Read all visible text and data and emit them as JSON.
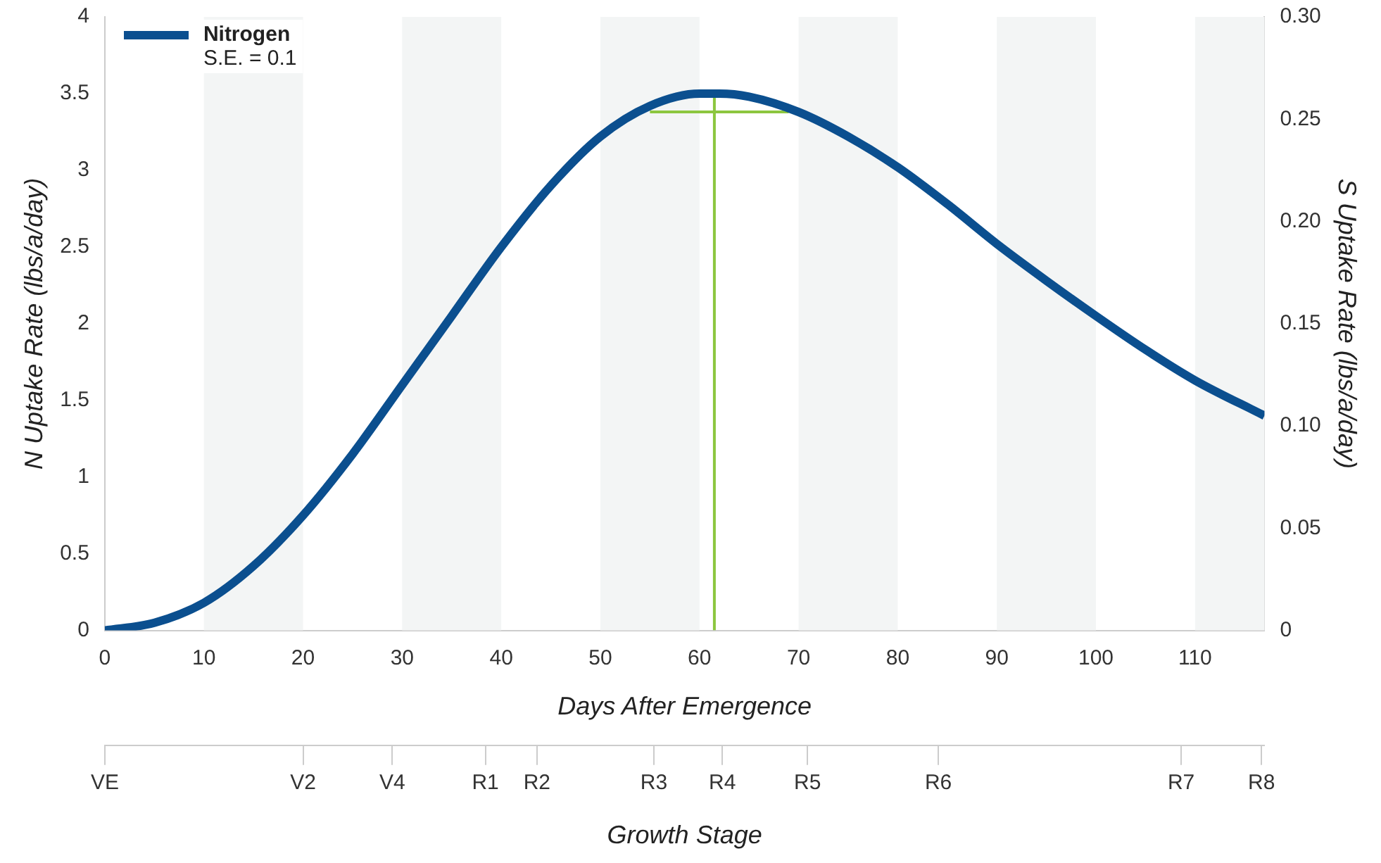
{
  "chart_data": {
    "type": "line",
    "xlabel": "Days After Emergence",
    "ylabel": "N Uptake Rate (lbs/a/day)",
    "y2label": "S Uptake Rate (lbs/a/day)",
    "xlim": [
      0,
      117
    ],
    "xticks": [
      0,
      10,
      20,
      30,
      40,
      50,
      60,
      70,
      80,
      90,
      100,
      110
    ],
    "ylim": [
      0,
      4
    ],
    "yticks": [
      0,
      0.5,
      1,
      1.5,
      2,
      2.5,
      3,
      3.5,
      4
    ],
    "y2lim": [
      0,
      0.3
    ],
    "y2ticks": [
      0,
      0.05,
      {
        "value": 0.1,
        "label": "0.10"
      },
      0.15,
      {
        "value": 0.2,
        "label": "0.20"
      },
      0.25,
      {
        "value": 0.3,
        "label": "0.30"
      }
    ],
    "x2label": "Growth Stage",
    "ref_lines": [
      {
        "axis": "x",
        "value": 0,
        "label": "VE",
        "color": "#cccccc"
      },
      {
        "axis": "x",
        "value": 20,
        "label": "V2",
        "color": "#cccccc"
      },
      {
        "axis": "x",
        "value": 29,
        "label": "V4",
        "color": "#cccccc"
      },
      {
        "axis": "x",
        "value": 38.4,
        "label": "R1",
        "color": "#cccccc"
      },
      {
        "axis": "x",
        "value": 43.6,
        "label": "R2",
        "color": "#cccccc"
      },
      {
        "axis": "x",
        "value": 55.4,
        "label": "R3",
        "color": "#cccccc"
      },
      {
        "axis": "x",
        "value": 62.3,
        "label": "R4",
        "color": "#cccccc"
      },
      {
        "axis": "x",
        "value": 70.9,
        "label": "R5",
        "color": "#cccccc"
      },
      {
        "axis": "x",
        "value": 84.1,
        "label": "R6",
        "color": "#cccccc"
      },
      {
        "axis": "x",
        "value": 108.6,
        "label": "R7",
        "color": "#cccccc"
      },
      {
        "axis": "x",
        "value": 116.7,
        "label": "R8",
        "color": "#cccccc"
      }
    ],
    "bands": [
      {
        "axis": "x",
        "from": 10,
        "to": 20,
        "color": "#f3f5f5"
      },
      {
        "axis": "x",
        "from": 30,
        "to": 40,
        "color": "#f3f5f5"
      },
      {
        "axis": "x",
        "from": 50,
        "to": 60,
        "color": "#f3f5f5"
      },
      {
        "axis": "x",
        "from": 70,
        "to": 80,
        "color": "#f3f5f5"
      },
      {
        "axis": "x",
        "from": 90,
        "to": 100,
        "color": "#f3f5f5"
      },
      {
        "axis": "x",
        "from": 110,
        "to": 117,
        "color": "#f3f5f5"
      }
    ],
    "series": [
      {
        "name": "Nitrogen",
        "color": "#0b4f8f",
        "x": [
          0,
          5,
          10,
          15,
          20,
          25,
          30,
          35,
          40,
          45,
          50,
          55,
          60,
          62,
          65,
          70,
          75,
          80,
          85,
          90,
          95,
          100,
          105,
          110,
          117
        ],
        "values": [
          0,
          0.05,
          0.18,
          0.42,
          0.75,
          1.15,
          1.6,
          2.05,
          2.5,
          2.9,
          3.22,
          3.42,
          3.5,
          3.5,
          3.48,
          3.38,
          3.22,
          3.02,
          2.78,
          2.52,
          2.28,
          2.05,
          1.83,
          1.63,
          1.4
        ]
      },
      {
        "color": "#8cc63f",
        "x": [
          61.5,
          61.5
        ],
        "values": [
          0,
          3.5
        ]
      },
      {
        "color": "#8cc63f",
        "x": [
          55,
          69
        ],
        "values": [
          3.38,
          3.38
        ]
      }
    ],
    "annotations": [
      "S.E. = 0.1"
    ],
    "legend": "top left",
    "grid": false,
    "marker": "none",
    "line_style": "solid"
  }
}
